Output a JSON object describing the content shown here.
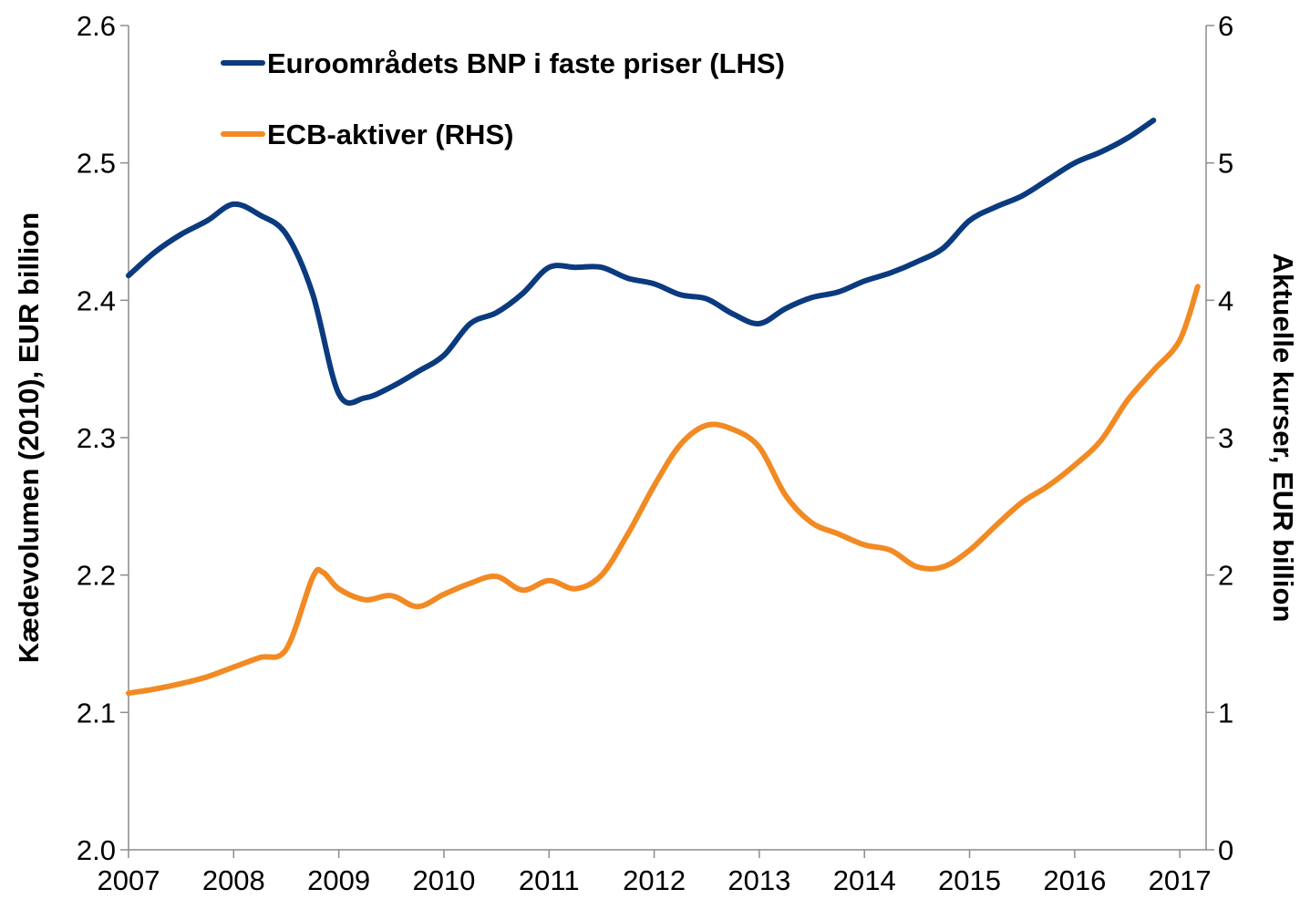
{
  "chart_data": {
    "type": "line",
    "ylabel_left": "Kædevolumen (2010), EUR billion",
    "ylabel_right": "Aktuelle kurser, EUR billion",
    "ylim_left": [
      2.0,
      2.6
    ],
    "ylim_right": [
      0,
      6
    ],
    "xlim": [
      2007,
      2017.25
    ],
    "x_ticks": [
      "2007",
      "2008",
      "2009",
      "2010",
      "2011",
      "2012",
      "2013",
      "2014",
      "2015",
      "2016",
      "2017"
    ],
    "y_ticks_left": [
      "2.0",
      "2.1",
      "2.2",
      "2.3",
      "2.4",
      "2.5",
      "2.6"
    ],
    "y_ticks_right": [
      "0",
      "1",
      "2",
      "3",
      "4",
      "5",
      "6"
    ],
    "grid": false,
    "legend_position": "top-left",
    "series": [
      {
        "name": "Euroområdets BNP i faste priser (LHS)",
        "axis": "left",
        "color": "#0b3a7e",
        "x": [
          2007.0,
          2007.25,
          2007.5,
          2007.75,
          2008.0,
          2008.25,
          2008.5,
          2008.75,
          2009.0,
          2009.25,
          2009.5,
          2009.75,
          2010.0,
          2010.25,
          2010.5,
          2010.75,
          2011.0,
          2011.25,
          2011.5,
          2011.75,
          2012.0,
          2012.25,
          2012.5,
          2012.75,
          2013.0,
          2013.25,
          2013.5,
          2013.75,
          2014.0,
          2014.25,
          2014.5,
          2014.75,
          2015.0,
          2015.25,
          2015.5,
          2015.75,
          2016.0,
          2016.25,
          2016.5,
          2016.75
        ],
        "y": [
          2.418,
          2.435,
          2.448,
          2.458,
          2.47,
          2.462,
          2.448,
          2.405,
          2.332,
          2.329,
          2.337,
          2.348,
          2.36,
          2.383,
          2.391,
          2.405,
          2.424,
          2.424,
          2.424,
          2.416,
          2.412,
          2.404,
          2.401,
          2.39,
          2.383,
          2.394,
          2.402,
          2.406,
          2.414,
          2.42,
          2.428,
          2.438,
          2.458,
          2.468,
          2.476,
          2.488,
          2.5,
          2.508,
          2.518,
          2.531
        ]
      },
      {
        "name": "ECB-aktiver (RHS)",
        "axis": "right",
        "color": "#f28a24",
        "x": [
          2007.0,
          2007.25,
          2007.5,
          2007.75,
          2008.0,
          2008.25,
          2008.5,
          2008.75,
          2008.85,
          2009.0,
          2009.25,
          2009.5,
          2009.75,
          2010.0,
          2010.25,
          2010.5,
          2010.75,
          2011.0,
          2011.25,
          2011.5,
          2011.75,
          2012.0,
          2012.25,
          2012.5,
          2012.75,
          2013.0,
          2013.25,
          2013.5,
          2013.75,
          2014.0,
          2014.25,
          2014.5,
          2014.75,
          2015.0,
          2015.25,
          2015.5,
          2015.75,
          2016.0,
          2016.25,
          2016.5,
          2016.75,
          2017.0,
          2017.17
        ],
        "y": [
          1.14,
          1.17,
          1.21,
          1.26,
          1.33,
          1.4,
          1.46,
          1.98,
          2.02,
          1.9,
          1.82,
          1.85,
          1.77,
          1.86,
          1.94,
          1.99,
          1.89,
          1.96,
          1.9,
          2.0,
          2.3,
          2.65,
          2.95,
          3.09,
          3.06,
          2.93,
          2.58,
          2.38,
          2.3,
          2.22,
          2.18,
          2.06,
          2.06,
          2.18,
          2.36,
          2.53,
          2.65,
          2.8,
          2.98,
          3.27,
          3.49,
          3.71,
          4.1
        ]
      }
    ]
  }
}
